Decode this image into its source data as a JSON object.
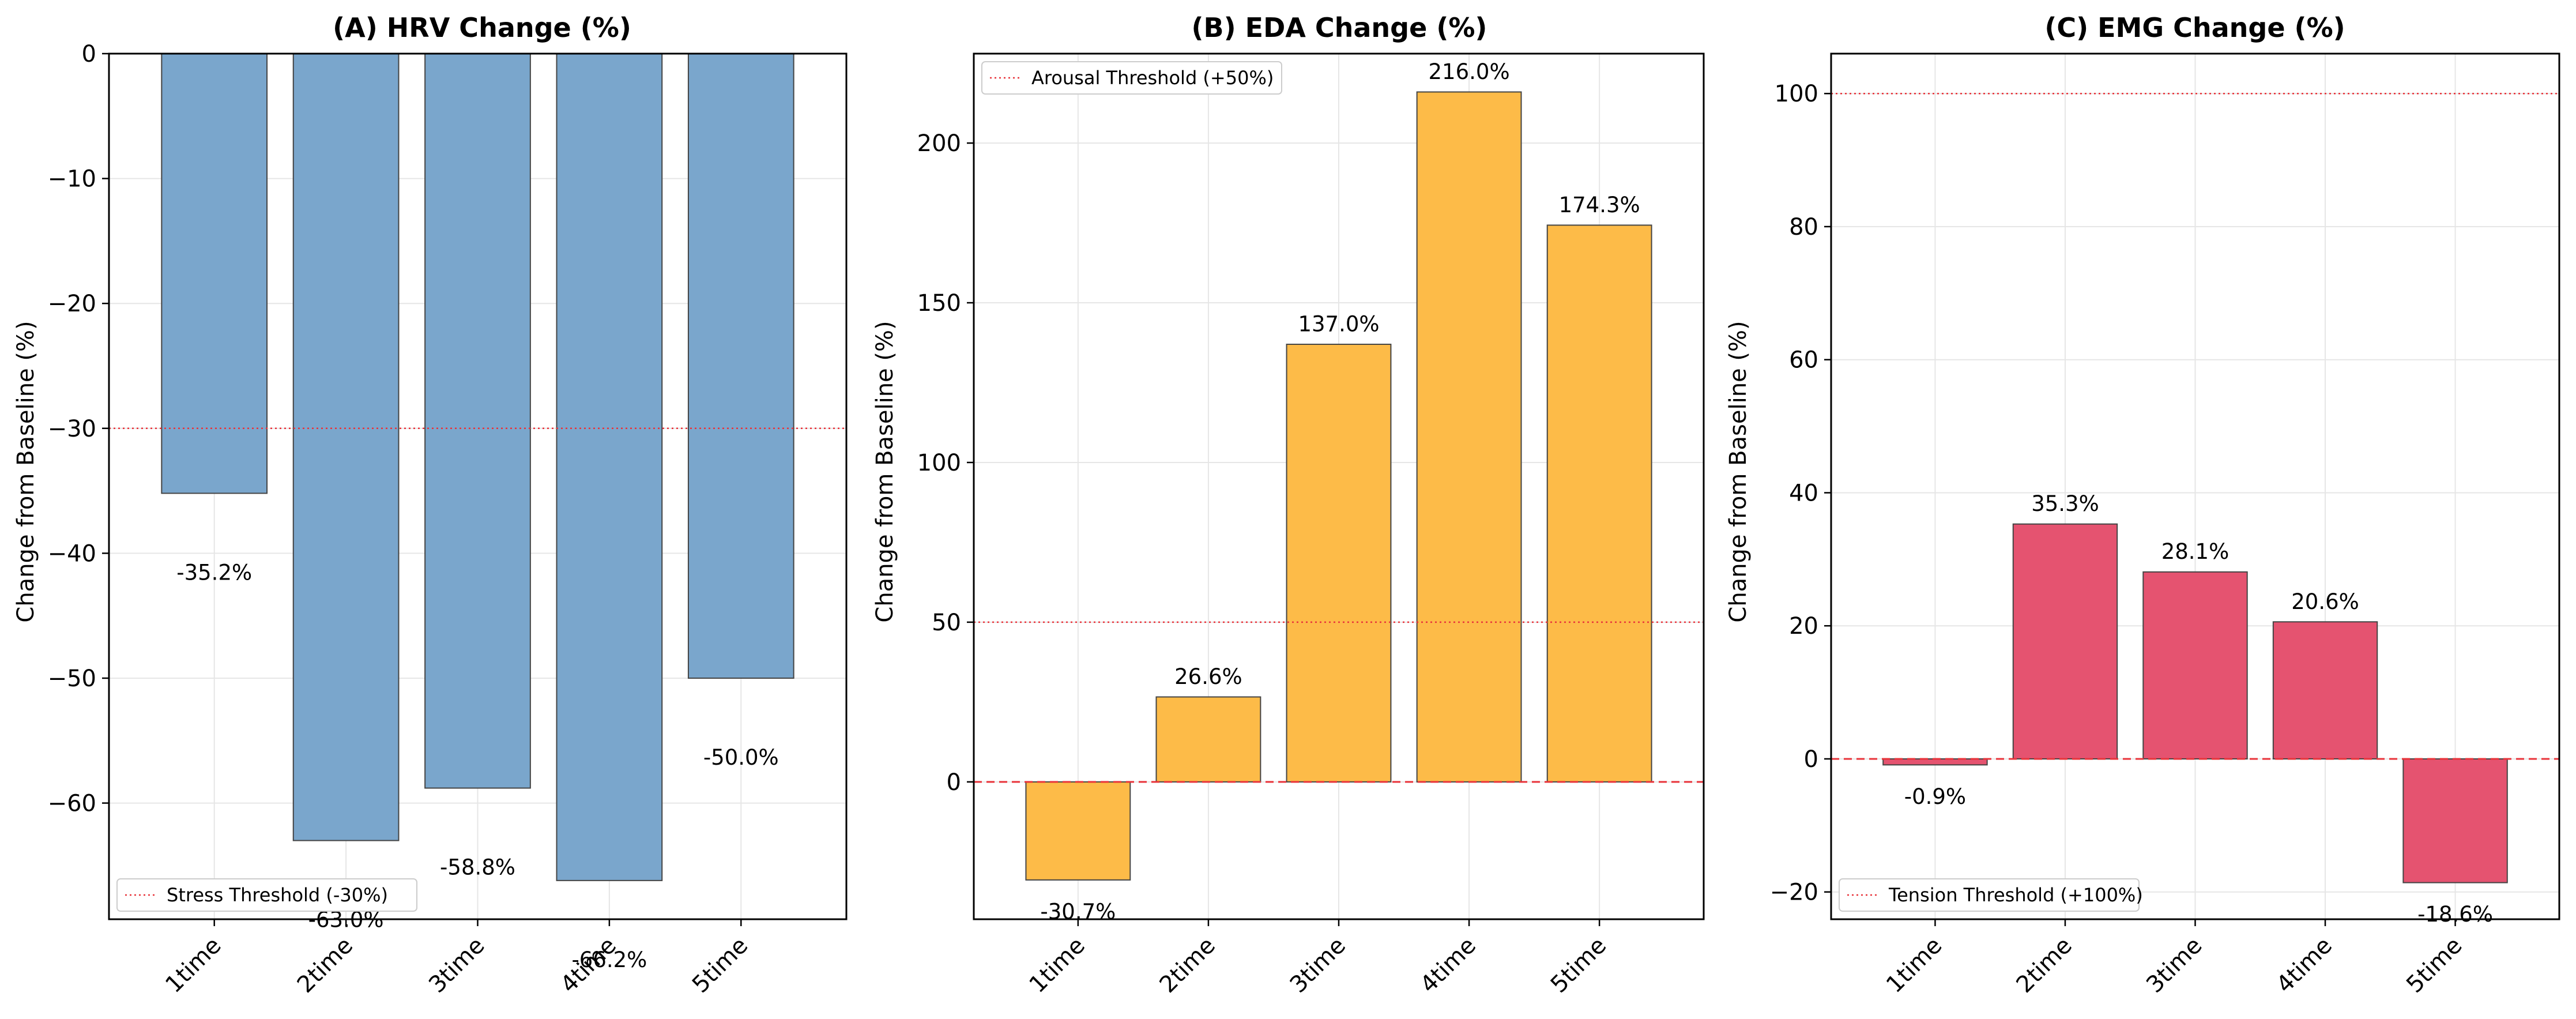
{
  "colors": {
    "hrv_bar": "#7aa6cc",
    "eda_bar": "#fdbb48",
    "emg_bar": "#e55370",
    "bar_edge": "#444444",
    "threshold_line": "#e8333a",
    "grid": "#e6e6e6"
  },
  "chart_data": [
    {
      "type": "bar",
      "title": "(A) HRV Change (%)",
      "ylabel": "Change from Baseline (%)",
      "xlabel": "",
      "categories": [
        "1time",
        "2time",
        "3time",
        "4time",
        "5time"
      ],
      "values": [
        -35.2,
        -63.0,
        -58.8,
        -66.2,
        -50.0
      ],
      "data_labels": [
        "-35.2%",
        "-63.0%",
        "-58.8%",
        "-66.2%",
        "-50.0%"
      ],
      "ylim": [
        -69.3,
        0
      ],
      "yticks": [
        0,
        -10,
        -20,
        -30,
        -40,
        -50,
        -60
      ],
      "ytick_labels": [
        "0",
        "−10",
        "−20",
        "−30",
        "−40",
        "−50",
        "−60"
      ],
      "threshold": {
        "value": -30,
        "label": "Stress Threshold (-30%)"
      },
      "legend_position": "lower left",
      "grid": true
    },
    {
      "type": "bar",
      "title": "(B) EDA Change (%)",
      "ylabel": "Change from Baseline (%)",
      "xlabel": "",
      "categories": [
        "1time",
        "2time",
        "3time",
        "4time",
        "5time"
      ],
      "values": [
        -30.7,
        26.6,
        137.0,
        216.0,
        174.3
      ],
      "data_labels": [
        "-30.7%",
        "26.6%",
        "137.0%",
        "216.0%",
        "174.3%"
      ],
      "ylim": [
        -43,
        228
      ],
      "yticks": [
        0,
        50,
        100,
        150,
        200
      ],
      "ytick_labels": [
        "0",
        "50",
        "100",
        "150",
        "200"
      ],
      "threshold": {
        "value": 50,
        "label": "Arousal Threshold (+50%)"
      },
      "zero_line": true,
      "legend_position": "upper left",
      "grid": true
    },
    {
      "type": "bar",
      "title": "(C) EMG Change (%)",
      "ylabel": "Change from Baseline (%)",
      "xlabel": "",
      "categories": [
        "1time",
        "2time",
        "3time",
        "4time",
        "5time"
      ],
      "values": [
        -0.9,
        35.3,
        28.1,
        20.6,
        -18.6
      ],
      "data_labels": [
        "-0.9%",
        "35.3%",
        "28.1%",
        "20.6%",
        "-18.6%"
      ],
      "ylim": [
        -24.1,
        106
      ],
      "yticks": [
        -20,
        0,
        20,
        40,
        60,
        80,
        100
      ],
      "ytick_labels": [
        "−20",
        "0",
        "20",
        "40",
        "60",
        "80",
        "100"
      ],
      "threshold": {
        "value": 100,
        "label": "Tension Threshold (+100%)"
      },
      "zero_line": true,
      "legend_position": "lower left",
      "grid": true
    }
  ]
}
